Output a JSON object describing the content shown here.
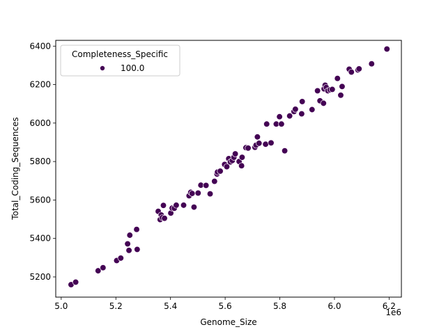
{
  "chart_data": {
    "type": "scatter",
    "title": "",
    "xlabel": "Genome_Size",
    "ylabel": "Total_Coding_Sequences",
    "x_offset_label": "1e6",
    "xlim": [
      4.98,
      6.245
    ],
    "ylim": [
      5095,
      6430
    ],
    "x_ticks": [
      5.0,
      5.2,
      5.4,
      5.6,
      5.8,
      6.0,
      6.2
    ],
    "x_tick_labels": [
      "5.0",
      "5.2",
      "5.4",
      "5.6",
      "5.8",
      "6.0",
      "6.2"
    ],
    "y_ticks": [
      5200,
      5400,
      5600,
      5800,
      6000,
      6200,
      6400
    ],
    "y_tick_labels": [
      "5200",
      "5400",
      "5600",
      "5800",
      "6000",
      "6200",
      "6400"
    ],
    "grid": false,
    "legend": {
      "title": "Completeness_Specific",
      "position": "upper left",
      "entries": [
        {
          "label": "100.0",
          "color": "#440154"
        }
      ]
    },
    "series": [
      {
        "name": "100.0",
        "color": "#440154",
        "points": [
          [
            5.036,
            5160
          ],
          [
            5.053,
            5173
          ],
          [
            5.135,
            5232
          ],
          [
            5.153,
            5248
          ],
          [
            5.203,
            5285
          ],
          [
            5.218,
            5298
          ],
          [
            5.243,
            5372
          ],
          [
            5.248,
            5338
          ],
          [
            5.251,
            5417
          ],
          [
            5.278,
            5343
          ],
          [
            5.276,
            5447
          ],
          [
            5.355,
            5541
          ],
          [
            5.362,
            5498
          ],
          [
            5.366,
            5522
          ],
          [
            5.37,
            5508
          ],
          [
            5.374,
            5572
          ],
          [
            5.378,
            5505
          ],
          [
            5.401,
            5532
          ],
          [
            5.406,
            5558
          ],
          [
            5.414,
            5557
          ],
          [
            5.421,
            5573
          ],
          [
            5.448,
            5573
          ],
          [
            5.468,
            5622
          ],
          [
            5.474,
            5640
          ],
          [
            5.479,
            5634
          ],
          [
            5.486,
            5563
          ],
          [
            5.501,
            5636
          ],
          [
            5.511,
            5677
          ],
          [
            5.53,
            5676
          ],
          [
            5.545,
            5632
          ],
          [
            5.561,
            5697
          ],
          [
            5.57,
            5735
          ],
          [
            5.572,
            5745
          ],
          [
            5.582,
            5750
          ],
          [
            5.598,
            5785
          ],
          [
            5.606,
            5773
          ],
          [
            5.613,
            5815
          ],
          [
            5.619,
            5798
          ],
          [
            5.626,
            5805
          ],
          [
            5.632,
            5822
          ],
          [
            5.637,
            5840
          ],
          [
            5.651,
            5800
          ],
          [
            5.66,
            5778
          ],
          [
            5.662,
            5822
          ],
          [
            5.676,
            5872
          ],
          [
            5.684,
            5870
          ],
          [
            5.709,
            5874
          ],
          [
            5.713,
            5885
          ],
          [
            5.718,
            5928
          ],
          [
            5.724,
            5895
          ],
          [
            5.748,
            5890
          ],
          [
            5.752,
            5995
          ],
          [
            5.768,
            5897
          ],
          [
            5.787,
            5995
          ],
          [
            5.799,
            6033
          ],
          [
            5.806,
            5995
          ],
          [
            5.818,
            5856
          ],
          [
            5.836,
            6037
          ],
          [
            5.852,
            6060
          ],
          [
            5.857,
            6072
          ],
          [
            5.88,
            6048
          ],
          [
            5.882,
            6112
          ],
          [
            5.918,
            6070
          ],
          [
            5.938,
            6168
          ],
          [
            5.947,
            6116
          ],
          [
            5.96,
            6103
          ],
          [
            5.962,
            6178
          ],
          [
            5.966,
            6197
          ],
          [
            5.97,
            6185
          ],
          [
            5.976,
            6168
          ],
          [
            5.984,
            6173
          ],
          [
            5.992,
            6175
          ],
          [
            6.011,
            6232
          ],
          [
            6.023,
            6145
          ],
          [
            6.028,
            6190
          ],
          [
            6.054,
            6280
          ],
          [
            6.062,
            6265
          ],
          [
            6.086,
            6276
          ],
          [
            6.09,
            6282
          ],
          [
            6.136,
            6308
          ],
          [
            6.192,
            6385
          ]
        ]
      }
    ]
  }
}
